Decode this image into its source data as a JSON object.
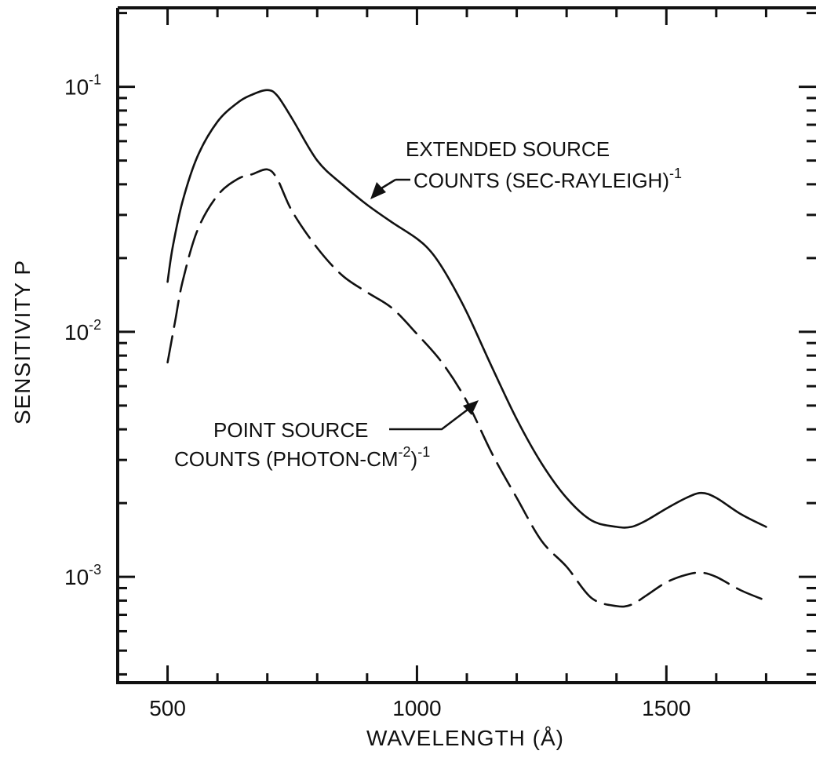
{
  "chart_data": {
    "type": "line",
    "xlabel": "WAVELENGTH (Å)",
    "ylabel": "SENSITIVITY P",
    "xlim": [
      400,
      1800
    ],
    "ylim": [
      0.00037,
      0.21
    ],
    "yscale": "log",
    "grid": false,
    "x_ticks": [
      500,
      1000,
      1500
    ],
    "x_tick_labels": [
      "500",
      "1000",
      "1500"
    ],
    "y_ticks": [
      0.001,
      0.01,
      0.1
    ],
    "y_tick_labels": [
      {
        "base": "10",
        "exp": "-3"
      },
      {
        "base": "10",
        "exp": "-2"
      },
      {
        "base": "10",
        "exp": "-1"
      }
    ],
    "series": [
      {
        "id": "extended",
        "style": "solid",
        "x": [
          500,
          510,
          530,
          560,
          600,
          640,
          670,
          700,
          720,
          750,
          800,
          850,
          900,
          950,
          1000,
          1030,
          1060,
          1100,
          1150,
          1200,
          1250,
          1300,
          1350,
          1400,
          1430,
          1460,
          1500,
          1540,
          1570,
          1600,
          1650,
          1700
        ],
        "y": [
          0.016,
          0.022,
          0.034,
          0.052,
          0.072,
          0.086,
          0.093,
          0.097,
          0.092,
          0.074,
          0.05,
          0.04,
          0.033,
          0.028,
          0.024,
          0.021,
          0.017,
          0.012,
          0.0072,
          0.0044,
          0.0029,
          0.0021,
          0.0017,
          0.0016,
          0.0016,
          0.0017,
          0.0019,
          0.0021,
          0.0022,
          0.0021,
          0.0018,
          0.0016
        ]
      },
      {
        "id": "point",
        "style": "dashed",
        "x": [
          500,
          515,
          530,
          560,
          600,
          640,
          670,
          700,
          720,
          750,
          800,
          850,
          900,
          950,
          1000,
          1050,
          1100,
          1150,
          1200,
          1250,
          1300,
          1350,
          1400,
          1430,
          1460,
          1500,
          1540,
          1570,
          1600,
          1650,
          1700
        ],
        "y": [
          0.0075,
          0.011,
          0.016,
          0.026,
          0.036,
          0.042,
          0.044,
          0.046,
          0.042,
          0.031,
          0.022,
          0.017,
          0.0145,
          0.0125,
          0.0098,
          0.0075,
          0.0052,
          0.0032,
          0.0021,
          0.0014,
          0.0011,
          0.00082,
          0.00076,
          0.00077,
          0.00084,
          0.00095,
          0.00102,
          0.00104,
          0.001,
          0.00088,
          0.0008
        ]
      }
    ],
    "annotations": {
      "extended": {
        "line1": "EXTENDED SOURCE",
        "line2": "COUNTS (SEC-RAYLEIGH)",
        "sup": "-1",
        "arrow_to": [
          965,
          0.033
        ]
      },
      "point": {
        "line1": "POINT SOURCE",
        "line2a": "COUNTS (PHOTON-CM",
        "sup1": "-2",
        "line2b": ")",
        "sup2": "-1",
        "arrow_to": [
          1125,
          0.0052
        ]
      }
    }
  }
}
